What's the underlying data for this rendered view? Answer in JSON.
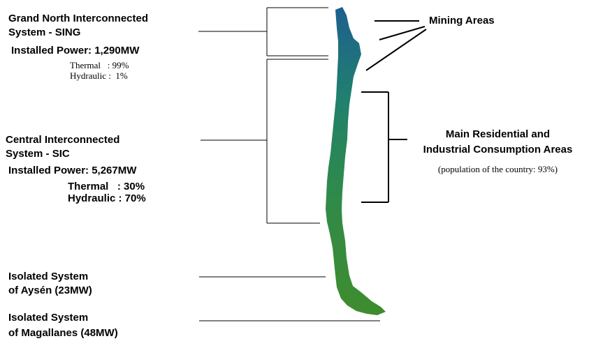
{
  "sing": {
    "title_line1": "Grand North Interconnected",
    "title_line2": "System - SING",
    "installed_power": "Installed Power: 1,290MW",
    "thermal": "Thermal   : 99%",
    "hydraulic": "Hydraulic :  1%"
  },
  "sic": {
    "title_line1": "Central Interconnected",
    "title_line2": "System - SIC",
    "installed_power": "Installed Power: 5,267MW",
    "thermal": "Thermal   : 30%",
    "hydraulic": "Hydraulic : 70%"
  },
  "aysen": {
    "line1": "Isolated System",
    "line2": "of Aysén (23MW)"
  },
  "magallanes": {
    "line1": "Isolated System",
    "line2": "of Magallanes (48MW)"
  },
  "mining": {
    "label": "Mining Areas"
  },
  "residential": {
    "line1": "Main Residential and",
    "line2": "Industrial Consumption Areas",
    "note": "(population of the country: 93%)"
  },
  "colors": {
    "map_north": "#1e6a8e",
    "map_mid": "#2e8a6a",
    "map_south": "#3f8a2a",
    "lines": "#000000"
  }
}
